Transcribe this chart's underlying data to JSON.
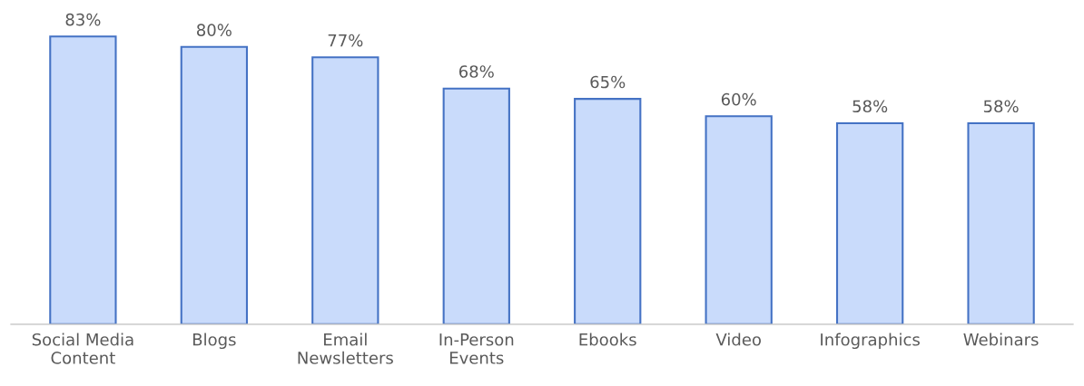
{
  "chart_data": {
    "type": "bar",
    "categories": [
      "Social Media Content",
      "Blogs",
      "Email Newsletters",
      "In-Person Events",
      "Ebooks",
      "Video",
      "Infographics",
      "Webinars"
    ],
    "values": [
      83,
      80,
      77,
      68,
      65,
      60,
      58,
      58
    ],
    "value_labels": [
      "83%",
      "80%",
      "77%",
      "68%",
      "65%",
      "60%",
      "58%",
      "58%"
    ],
    "color": "#c9dbfb",
    "tick_labels": "x",
    "grid": false,
    "legend": false
  }
}
